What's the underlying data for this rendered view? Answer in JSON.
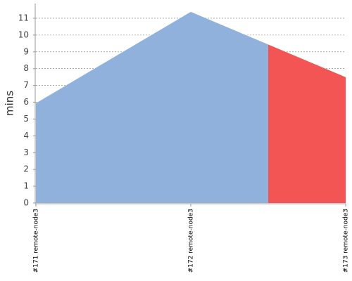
{
  "chart_data": {
    "type": "area",
    "y_label": "mins",
    "categories": [
      "#171 remote-node3",
      "#172 remote-node3",
      "#173 remote-node3"
    ],
    "series": [
      {
        "values": [
          5.94,
          11.38,
          7.49
        ],
        "colors": [
          "#8fb1dc",
          "#8fb1dc",
          "#f35555"
        ]
      }
    ],
    "ylim": [
      0,
      11.5
    ],
    "yticks": [
      0,
      1,
      2,
      3,
      4,
      5,
      6,
      7,
      8,
      9,
      10,
      11
    ],
    "grid": true
  }
}
